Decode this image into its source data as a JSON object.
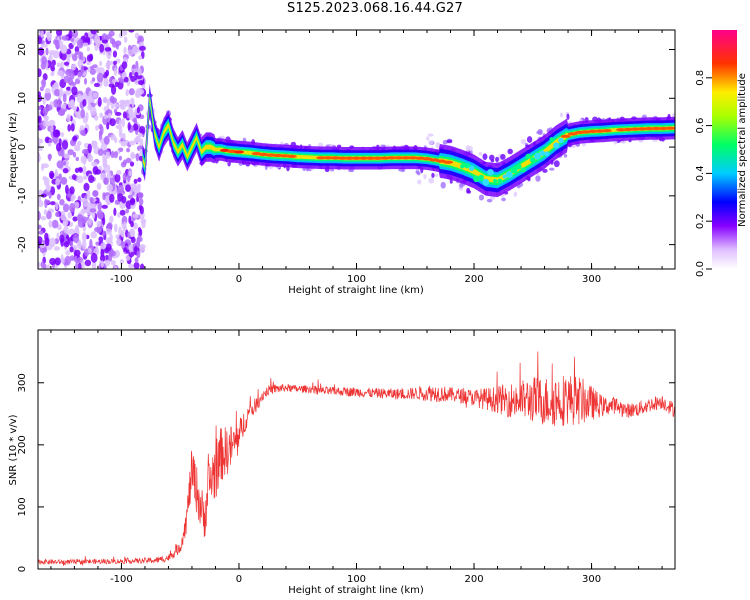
{
  "title": "S125.2023.068.16.44.G27",
  "chart_data": [
    {
      "type": "heatmap",
      "name": "spectrogram",
      "xlabel": "Height of straight line (km)",
      "ylabel": "Frequency (Hz)",
      "xlim": [
        -171,
        371
      ],
      "ylim": [
        -25,
        24
      ],
      "xticks": [
        -100,
        0,
        100,
        200,
        300
      ],
      "yticks": [
        -20,
        -10,
        0,
        10,
        20
      ],
      "ridge": {
        "x": [
          -171,
          -150,
          -120,
          -100,
          -85,
          -80,
          -76,
          -72,
          -68,
          -64,
          -60,
          -56,
          -52,
          -48,
          -44,
          -40,
          -36,
          -32,
          -28,
          -24,
          -20,
          -15,
          -10,
          0,
          10,
          20,
          30,
          40,
          50,
          60,
          70,
          80,
          90,
          100,
          110,
          120,
          130,
          140,
          150,
          160,
          170,
          180,
          190,
          200,
          210,
          220,
          230,
          240,
          250,
          260,
          270,
          280,
          290,
          300,
          310,
          320,
          330,
          340,
          350,
          360,
          371
        ],
        "y": [
          0,
          0,
          0,
          0,
          0,
          -4,
          10,
          3,
          0,
          3,
          4.5,
          1,
          -1,
          0.5,
          -2,
          0,
          2,
          -1,
          0,
          0,
          -0.5,
          -0.5,
          -0.8,
          -1,
          -1.2,
          -1.5,
          -1.7,
          -1.8,
          -2,
          -2.1,
          -2.2,
          -2.2,
          -2.3,
          -2.3,
          -2.3,
          -2.3,
          -2.2,
          -2.2,
          -2.2,
          -2.4,
          -2.8,
          -3.2,
          -4,
          -5,
          -6.5,
          -6.8,
          -5.5,
          -4,
          -2.5,
          -1,
          1,
          2.5,
          3,
          3.2,
          3.3,
          3.5,
          3.6,
          3.7,
          3.8,
          3.8,
          3.9
        ]
      }
    },
    {
      "type": "line",
      "name": "snr",
      "xlabel": "Height of straight line (km)",
      "ylabel": "SNR (10 * v/v)",
      "xlim": [
        -171,
        371
      ],
      "ylim": [
        0,
        385
      ],
      "xticks": [
        -100,
        0,
        100,
        200,
        300
      ],
      "yticks": [
        0,
        100,
        200,
        300
      ],
      "series": [
        {
          "name": "SNR",
          "color": "#ee3333",
          "x": [
            -171,
            -150,
            -130,
            -110,
            -90,
            -70,
            -60,
            -50,
            -45,
            -40,
            -35,
            -30,
            -25,
            -20,
            -15,
            -10,
            -5,
            0,
            5,
            10,
            15,
            20,
            25,
            30,
            40,
            50,
            60,
            70,
            80,
            90,
            100,
            110,
            120,
            130,
            140,
            150,
            160,
            170,
            180,
            190,
            200,
            210,
            220,
            230,
            240,
            250,
            260,
            270,
            280,
            290,
            300,
            310,
            320,
            330,
            340,
            350,
            360,
            371
          ],
          "y": [
            12,
            11,
            12,
            12,
            13,
            14,
            18,
            35,
            75,
            160,
            120,
            80,
            140,
            160,
            185,
            190,
            200,
            210,
            240,
            255,
            265,
            280,
            288,
            290,
            292,
            290,
            290,
            287,
            286,
            286,
            285,
            284,
            283,
            282,
            282,
            283,
            284,
            283,
            281,
            279,
            276,
            274,
            273,
            272,
            272,
            273,
            270,
            272,
            274,
            271,
            267,
            262,
            264,
            255,
            258,
            265,
            270,
            255
          ],
          "noise": [
            4,
            4,
            4,
            4,
            4,
            5,
            6,
            10,
            20,
            40,
            40,
            40,
            45,
            50,
            45,
            40,
            35,
            30,
            20,
            15,
            12,
            10,
            8,
            8,
            6,
            6,
            6,
            7,
            7,
            7,
            8,
            8,
            8,
            9,
            9,
            10,
            14,
            14,
            12,
            12,
            14,
            18,
            22,
            28,
            32,
            38,
            40,
            44,
            42,
            40,
            28,
            16,
            14,
            12,
            12,
            12,
            12,
            12
          ]
        }
      ]
    }
  ],
  "colorbar": {
    "label": "Normalized spectral amplitude",
    "ticks": [
      "0.0",
      "0.2",
      "0.4",
      "0.6",
      "0.8"
    ],
    "stops": [
      "#ffffff",
      "#8800ff",
      "#0000ff",
      "#00ccff",
      "#00ff66",
      "#aaff00",
      "#ffee00",
      "#ff8800",
      "#ff0000",
      "#ff0088"
    ]
  }
}
